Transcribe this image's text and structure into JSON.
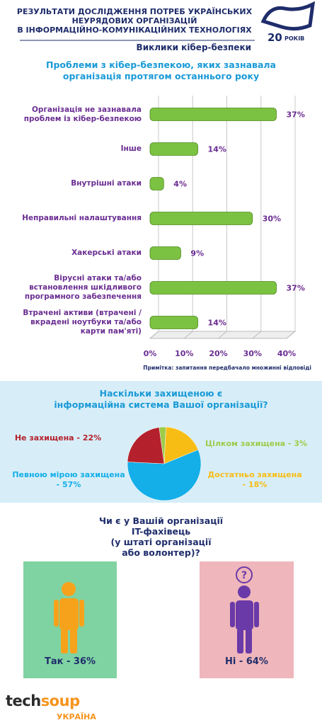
{
  "header": {
    "title": "РЕЗУЛЬТАТИ ДОСЛІДЖЕННЯ ПОТРЕБ УКРАЇНСЬКИХ\nНЕУРЯДОВИХ ОРГАНІЗАЦІЙ\nВ ІНФОРМАЦІЙНО-КОМУНІКАЦІЙНИХ ТЕХНОЛОГІЯХ",
    "logo_number": "20",
    "logo_text": "РОКІВ",
    "subtitle": "Виклики кібер-безпеки"
  },
  "chart_data": [
    {
      "type": "bar",
      "orientation": "horizontal",
      "title": "Проблеми з кібер-безпекою, яких зазнавала\nорганізація протягом останнього року",
      "categories": [
        "Організація не зазнавала\nпроблем із кібер-безпекою",
        "Інше",
        "Внутрішні атаки",
        "Неправильні налаштування",
        "Хакерські атаки",
        "Вірусні атаки та/або\nвстановлення шкідливого\nпрограмного забезпечення",
        "Втрачені активи (втрачені /\nвкрадені ноутбуки та/або\nкарти пам'яті)"
      ],
      "values": [
        37,
        14,
        4,
        30,
        9,
        37,
        14
      ],
      "value_labels": [
        "37%",
        "14%",
        "4%",
        "30%",
        "9%",
        "37%",
        "14%"
      ],
      "color": "#7cc242",
      "xlim": [
        0,
        40
      ],
      "xticks": [
        {
          "value": 0,
          "label": "0%"
        },
        {
          "value": 10,
          "label": "10%"
        },
        {
          "value": 20,
          "label": "20%"
        },
        {
          "value": 30,
          "label": "30%"
        },
        {
          "value": 40,
          "label": "40%"
        }
      ],
      "grid": true,
      "note": "Примітка: запитання передбачало множинні відповіді"
    },
    {
      "type": "pie",
      "title": "Наскільки захищеною є\nінформаційна система Вашої організації?",
      "categories": [
        "Цілком захищена - 3%",
        "Достатньо захищена\n- 18%",
        "Певною мірою захищена\n- 57%",
        "Не захищена - 22%"
      ],
      "values": [
        3,
        18,
        57,
        22
      ],
      "colors": [
        "#9ccc4a",
        "#f7bd15",
        "#14aee8",
        "#b4212c"
      ]
    }
  ],
  "it_staff": {
    "question": "Чи є у Вашій організації\nIT-фахівець\n(у штаті організації\nабо волонтер)?",
    "yes": "Так - 36%",
    "no": "Ні - 64%"
  },
  "footer": {
    "brand_a": "tech",
    "brand_b": "soup",
    "country": "УКРАЇНА"
  }
}
